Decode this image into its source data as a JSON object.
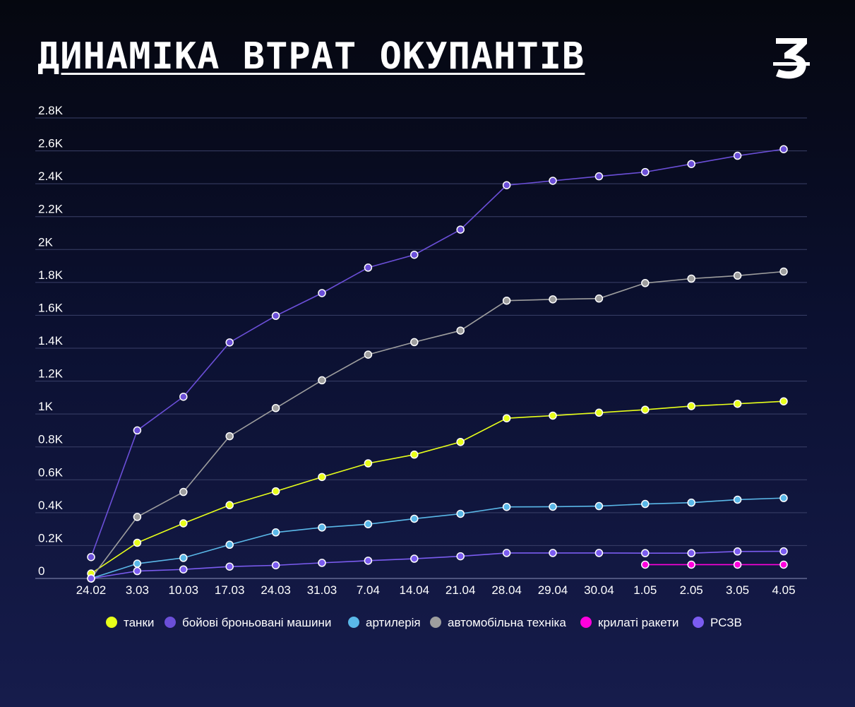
{
  "title": "ДИНАМІКА ВТРАТ ОКУПАНТІВ",
  "chart_data": {
    "type": "line",
    "title": "ДИНАМІКА ВТРАТ ОКУПАНТІВ",
    "xlabel": "",
    "ylabel": "",
    "ylim": [
      0,
      2800
    ],
    "yticks": [
      0,
      200,
      400,
      600,
      800,
      1000,
      1200,
      1400,
      1600,
      1800,
      2000,
      2200,
      2400,
      2600,
      2800
    ],
    "ytick_labels": [
      "0",
      "0.2K",
      "0.4K",
      "0.6K",
      "0.8K",
      "1K",
      "1.2K",
      "1.4K",
      "1.6K",
      "1.8K",
      "2K",
      "2.2K",
      "2.4K",
      "2.6K",
      "2.8K"
    ],
    "grid": true,
    "legend_position": "bottom",
    "categories": [
      "24.02",
      "3.03",
      "10.03",
      "17.03",
      "24.03",
      "31.03",
      "7.04",
      "14.04",
      "21.04",
      "28.04",
      "29.04",
      "30.04",
      "1.05",
      "2.05",
      "3.05",
      "4.05"
    ],
    "series": [
      {
        "name": "танки",
        "color": "#e8ff1a",
        "values": [
          30,
          217,
          335,
          446,
          530,
          617,
          700,
          753,
          830,
          974,
          990,
          1008,
          1026,
          1048,
          1062,
          1077
        ]
      },
      {
        "name": "бойові броньовані машини",
        "color": "#6b4fd8",
        "values": [
          130,
          900,
          1105,
          1435,
          1597,
          1735,
          1890,
          1968,
          2121,
          2391,
          2418,
          2445,
          2471,
          2520,
          2570,
          2610
        ]
      },
      {
        "name": "артилерія",
        "color": "#5ab8e8",
        "values": [
          0,
          90,
          125,
          205,
          280,
          310,
          330,
          363,
          393,
          435,
          436,
          440,
          453,
          461,
          479,
          489
        ]
      },
      {
        "name": "автомобільна техніка",
        "color": "#9e9e9e",
        "values": [
          0,
          374,
          526,
          865,
          1036,
          1205,
          1361,
          1437,
          1507,
          1689,
          1697,
          1702,
          1796,
          1823,
          1841,
          1866
        ]
      },
      {
        "name": "крилаті ракети",
        "color": "#ff00dd",
        "values": [
          null,
          null,
          null,
          null,
          null,
          null,
          null,
          null,
          null,
          null,
          null,
          null,
          84,
          84,
          84,
          84
        ]
      },
      {
        "name": "РСЗВ",
        "color": "#7b5cf0",
        "values": [
          0,
          45,
          55,
          72,
          80,
          95,
          108,
          120,
          135,
          155,
          155,
          155,
          154,
          154,
          164,
          165
        ]
      }
    ]
  }
}
